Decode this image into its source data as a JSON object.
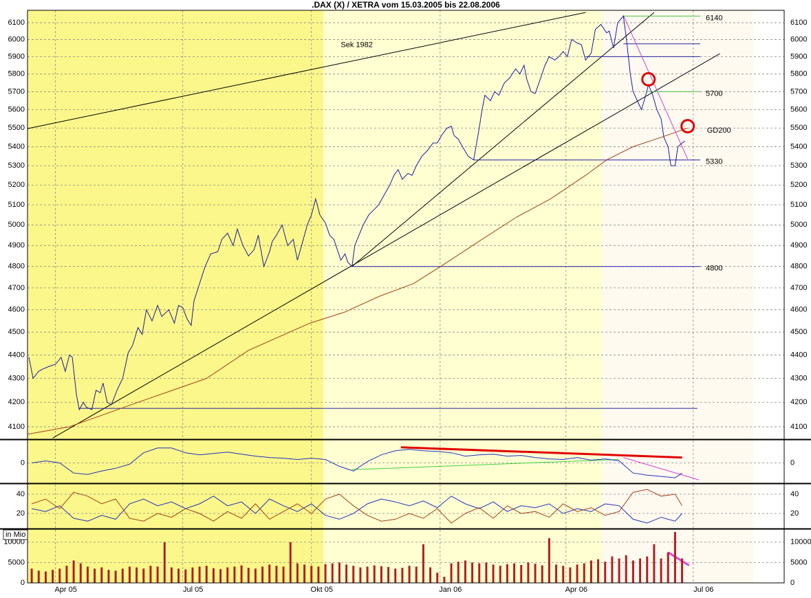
{
  "chart_data": [
    {
      "type": "line",
      "title": ".DAX (X) / XETRA vom 15.03.2005 bis 22.08.2006",
      "log_scale": true,
      "grid": true,
      "xlim": [
        -3,
        538
      ],
      "ylim": [
        4053,
        6175
      ],
      "yticks": [
        4100,
        4200,
        4300,
        4400,
        4500,
        4600,
        4700,
        4800,
        4900,
        5000,
        5100,
        5200,
        5300,
        5400,
        5500,
        5600,
        5700,
        5800,
        5900,
        6000,
        6100
      ],
      "series": [
        {
          "color": "#1a1aa0",
          "x": [
            -2,
            1,
            5,
            8,
            12,
            17,
            21,
            24,
            27,
            29,
            32,
            34,
            37,
            39,
            43,
            46,
            49,
            51,
            54,
            57,
            61,
            65,
            69,
            72,
            76,
            79,
            82,
            86,
            90,
            93,
            98,
            102,
            105,
            108,
            111,
            114,
            116,
            120,
            124,
            128,
            133,
            136,
            140,
            144,
            147,
            151,
            155,
            159,
            162,
            166,
            170,
            172,
            175,
            179,
            183,
            187,
            190,
            193,
            197,
            200,
            203,
            206,
            210,
            213,
            216,
            219,
            221,
            224,
            226,
            229,
            231,
            234,
            237,
            241,
            244,
            248,
            252,
            256,
            259,
            262,
            265,
            269,
            272,
            275,
            279,
            283,
            287,
            290,
            293,
            297,
            300,
            302,
            305,
            308,
            312,
            316,
            320,
            322,
            324,
            328,
            331,
            334,
            338,
            342,
            346,
            349,
            352,
            354,
            357,
            360,
            364,
            367,
            370,
            374,
            377,
            380,
            383,
            386,
            390,
            393,
            396,
            400,
            403,
            407,
            411,
            413,
            416,
            419,
            423,
            425,
            428,
            430,
            433,
            436,
            439,
            441,
            444,
            447,
            450,
            452,
            455,
            457,
            460,
            462,
            465,
            467
          ],
          "values": [
            4390,
            4300,
            4330,
            4340,
            4350,
            4360,
            4390,
            4330,
            4400,
            4390,
            4230,
            4170,
            4200,
            4180,
            4170,
            4250,
            4240,
            4280,
            4200,
            4190,
            4250,
            4300,
            4410,
            4440,
            4520,
            4490,
            4600,
            4550,
            4620,
            4570,
            4600,
            4540,
            4620,
            4610,
            4560,
            4530,
            4640,
            4720,
            4800,
            4860,
            4870,
            4930,
            4960,
            4900,
            4980,
            4900,
            4850,
            4880,
            4950,
            4800,
            4870,
            4920,
            4950,
            5000,
            4900,
            4930,
            4830,
            4900,
            5000,
            5050,
            5130,
            5050,
            5010,
            4950,
            4930,
            4870,
            4830,
            4860,
            4820,
            4800,
            4900,
            4950,
            5000,
            5050,
            5070,
            5100,
            5150,
            5200,
            5250,
            5280,
            5230,
            5260,
            5250,
            5300,
            5350,
            5380,
            5420,
            5420,
            5460,
            5500,
            5510,
            5460,
            5440,
            5400,
            5350,
            5330,
            5500,
            5600,
            5680,
            5650,
            5700,
            5680,
            5750,
            5780,
            5830,
            5800,
            5850,
            5770,
            5700,
            5690,
            5780,
            5850,
            5900,
            5880,
            5900,
            5930,
            5900,
            6000,
            5980,
            5970,
            5880,
            5920,
            6060,
            6090,
            6040,
            6050,
            5950,
            6100,
            6140,
            6020,
            5800,
            5700,
            5650,
            5600,
            5680,
            5740,
            5680,
            5600,
            5550,
            5450,
            5400,
            5300,
            5300,
            5400,
            5420,
            5430
          ]
        },
        {
          "name": "GD200",
          "color": "#a0401a",
          "x": [
            -3,
            27,
            76,
            125,
            155,
            199,
            224,
            248,
            273,
            297,
            322,
            347,
            371,
            396,
            411,
            430,
            450,
            469
          ],
          "values": [
            4070,
            4100,
            4200,
            4300,
            4420,
            4540,
            4590,
            4660,
            4720,
            4820,
            4930,
            5040,
            5130,
            5250,
            5330,
            5400,
            5450,
            5500
          ]
        }
      ],
      "label_color": "#c040c0",
      "levels": [
        {
          "value": 6140,
          "x": [
            423,
            478
          ],
          "color": "#40c040"
        },
        {
          "value": 5700,
          "x": [
            440,
            478
          ],
          "color": "#40c040"
        },
        {
          "value": 5330,
          "x": [
            316,
            478
          ],
          "color": "#2020a0"
        },
        {
          "value": 4800,
          "x": [
            229,
            478
          ],
          "color": "#2020a0"
        }
      ],
      "trendlines": [
        {
          "name": "Sek 1982",
          "x": [
            -3,
            396
          ],
          "values": [
            5497,
            6162
          ],
          "color": "#000000"
        },
        {
          "x": [
            15,
            492
          ],
          "values": [
            4055,
            5917
          ],
          "color": "#000000"
        },
        {
          "x": [
            229,
            445
          ],
          "values": [
            4800,
            6162
          ],
          "color": "#000000"
        },
        {
          "x": [
            423,
            478
          ],
          "values": [
            5975,
            5975
          ],
          "color": "#2020a0"
        },
        {
          "x": [
            396,
            478
          ],
          "values": [
            5900,
            5900
          ],
          "color": "#2020a0"
        },
        {
          "x": [
            34,
            476
          ],
          "values": [
            4175,
            4175
          ],
          "color": "#2020a0"
        },
        {
          "x": [
            423,
            469
          ],
          "values": [
            6145,
            5335
          ],
          "color": "#d040d0"
        }
      ],
      "circles": [
        {
          "x": 441,
          "y": 5770
        },
        {
          "x": 469,
          "y": 5510
        }
      ],
      "circle_color": "#e00000"
    },
    {
      "type": "line",
      "grid": true,
      "xlim": [
        -3,
        538
      ],
      "ylim": [
        -29,
        33
      ],
      "yticks": [
        0
      ],
      "series": [
        {
          "color": "#2030c0",
          "x": [
            0,
            10,
            20,
            30,
            40,
            50,
            60,
            70,
            80,
            90,
            100,
            110,
            120,
            130,
            140,
            150,
            160,
            170,
            180,
            190,
            200,
            210,
            220,
            230,
            240,
            250,
            260,
            270,
            280,
            290,
            300,
            310,
            320,
            330,
            340,
            350,
            360,
            370,
            380,
            390,
            400,
            410,
            420,
            430,
            440,
            450,
            460,
            465
          ],
          "values": [
            0,
            3,
            0,
            -15,
            -17,
            -12,
            -8,
            -2,
            15,
            22,
            22,
            15,
            12,
            14,
            16,
            13,
            10,
            8,
            7,
            5,
            7,
            5,
            -5,
            -12,
            2,
            12,
            18,
            20,
            18,
            17,
            15,
            10,
            12,
            13,
            10,
            11,
            8,
            6,
            5,
            8,
            4,
            6,
            3,
            -15,
            -18,
            -20,
            -22,
            -15
          ]
        }
      ],
      "trendlines": [
        {
          "x": [
            264,
            465
          ],
          "values": [
            23,
            8
          ],
          "color": "#e00000",
          "width": 3
        },
        {
          "x": [
            229,
            420
          ],
          "values": [
            -10,
            5
          ],
          "color": "#40d040"
        },
        {
          "x": [
            423,
            477
          ],
          "values": [
            8,
            -25
          ],
          "color": "#d040d0"
        }
      ]
    },
    {
      "type": "line",
      "grid": true,
      "xlim": [
        -3,
        538
      ],
      "ylim": [
        5,
        50
      ],
      "yticks": [
        20,
        40
      ],
      "series": [
        {
          "color": "#2030c0",
          "x": [
            0,
            10,
            20,
            30,
            40,
            50,
            60,
            70,
            80,
            90,
            100,
            110,
            120,
            130,
            140,
            150,
            160,
            170,
            180,
            190,
            200,
            210,
            220,
            230,
            240,
            250,
            260,
            270,
            280,
            290,
            300,
            310,
            320,
            330,
            340,
            350,
            360,
            370,
            380,
            390,
            400,
            410,
            420,
            430,
            440,
            450,
            460,
            465
          ],
          "values": [
            25,
            22,
            28,
            15,
            12,
            18,
            14,
            30,
            35,
            28,
            32,
            25,
            30,
            38,
            28,
            32,
            20,
            35,
            28,
            22,
            30,
            18,
            14,
            20,
            30,
            35,
            32,
            28,
            33,
            26,
            38,
            30,
            25,
            32,
            22,
            28,
            26,
            30,
            20,
            25,
            22,
            30,
            28,
            14,
            10,
            16,
            12,
            20
          ]
        },
        {
          "color": "#a0401a",
          "x": [
            0,
            10,
            20,
            30,
            40,
            50,
            60,
            70,
            80,
            90,
            100,
            110,
            120,
            130,
            140,
            150,
            160,
            170,
            180,
            190,
            200,
            210,
            220,
            230,
            240,
            250,
            260,
            270,
            280,
            290,
            300,
            310,
            320,
            330,
            340,
            350,
            360,
            370,
            380,
            390,
            400,
            410,
            420,
            430,
            440,
            450,
            460,
            465
          ],
          "values": [
            30,
            35,
            25,
            42,
            38,
            30,
            35,
            15,
            12,
            20,
            16,
            25,
            20,
            12,
            22,
            15,
            30,
            14,
            22,
            30,
            20,
            35,
            40,
            28,
            18,
            12,
            14,
            20,
            15,
            25,
            10,
            20,
            26,
            15,
            28,
            20,
            22,
            16,
            30,
            22,
            26,
            18,
            22,
            42,
            45,
            38,
            40,
            28
          ]
        }
      ]
    },
    {
      "type": "bar",
      "ylabel": "in Mio",
      "grid": true,
      "xlim": [
        -3,
        538
      ],
      "ylim": [
        0,
        13000
      ],
      "yticks": [
        0,
        5000,
        10000
      ],
      "xticks": [
        {
          "value": 17,
          "label": "Apr 05"
        },
        {
          "value": 108,
          "label": "Jul 05"
        },
        {
          "value": 200,
          "label": "Okt 05"
        },
        {
          "value": 292,
          "label": "Jan 06"
        },
        {
          "value": 382,
          "label": "Apr 06"
        },
        {
          "value": 473,
          "label": "Jul 06"
        }
      ],
      "series": [
        {
          "color": "#b02020",
          "x": [
            0,
            5,
            10,
            15,
            20,
            25,
            30,
            35,
            40,
            45,
            50,
            55,
            60,
            65,
            70,
            75,
            80,
            85,
            90,
            95,
            100,
            105,
            110,
            115,
            120,
            125,
            130,
            135,
            140,
            145,
            150,
            155,
            160,
            165,
            170,
            175,
            180,
            185,
            190,
            195,
            200,
            205,
            210,
            215,
            220,
            225,
            230,
            235,
            240,
            245,
            250,
            255,
            260,
            265,
            270,
            275,
            280,
            285,
            290,
            295,
            300,
            305,
            310,
            315,
            320,
            325,
            330,
            335,
            340,
            345,
            350,
            355,
            360,
            365,
            370,
            375,
            380,
            385,
            390,
            395,
            400,
            405,
            410,
            415,
            420,
            425,
            430,
            435,
            440,
            445,
            450,
            455,
            460,
            465
          ],
          "values": [
            3500,
            3000,
            2800,
            3200,
            3500,
            4200,
            5500,
            4800,
            4000,
            3500,
            3800,
            3200,
            3000,
            3500,
            4000,
            3800,
            3500,
            4200,
            4000,
            10000,
            3800,
            3500,
            3300,
            3800,
            4000,
            4200,
            3600,
            3400,
            3800,
            4000,
            4300,
            3700,
            3500,
            4000,
            4500,
            4200,
            4000,
            10000,
            4800,
            4500,
            4200,
            4000,
            4600,
            4800,
            5000,
            4500,
            4200,
            3800,
            4000,
            4300,
            4100,
            3900,
            3500,
            3700,
            4200,
            4000,
            9500,
            3800,
            2500,
            1500,
            4800,
            5200,
            5500,
            5000,
            4800,
            5000,
            4500,
            4200,
            4600,
            4800,
            4400,
            5000,
            4700,
            4300,
            11000,
            4500,
            4200,
            3800,
            4500,
            4800,
            5500,
            5800,
            5200,
            6500,
            6000,
            6800,
            5500,
            6000,
            6500,
            9500,
            6000,
            7500,
            12500,
            6000
          ]
        }
      ],
      "trendlines": [
        {
          "x": [
            455,
            470
          ],
          "values": [
            7500,
            4300
          ],
          "color": "#e040e0",
          "width": 3
        }
      ]
    }
  ]
}
